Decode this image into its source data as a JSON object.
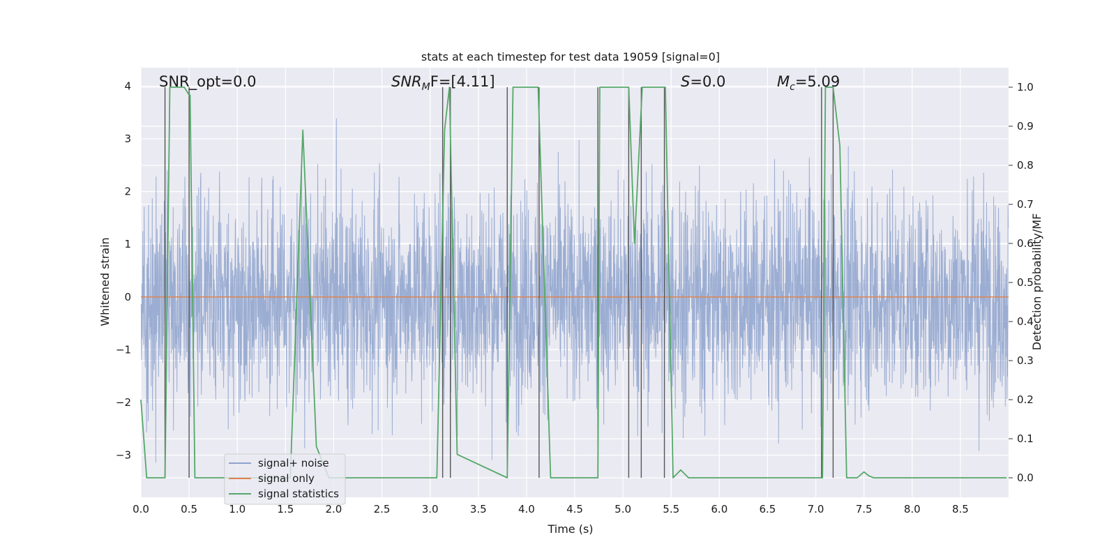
{
  "chart_data": {
    "type": "line",
    "title": "stats at each timestep for test data 19059 [signal=0]",
    "xlabel": "Time (s)",
    "ylabel_left": "Whitened strain",
    "ylabel_right": "Detection probability/MF",
    "xlim": [
      0.0,
      9.0
    ],
    "ylim_left": [
      -3.8,
      4.35
    ],
    "ylim_right": [
      -0.05,
      1.05
    ],
    "x_ticks": [
      0.0,
      0.5,
      1.0,
      1.5,
      2.0,
      2.5,
      3.0,
      3.5,
      4.0,
      4.5,
      5.0,
      5.5,
      6.0,
      6.5,
      7.0,
      7.5,
      8.0,
      8.5
    ],
    "x_tick_labels": [
      "0.0",
      "0.5",
      "1.0",
      "1.5",
      "2.0",
      "2.5",
      "3.0",
      "3.5",
      "4.0",
      "4.5",
      "5.0",
      "5.5",
      "6.0",
      "6.5",
      "7.0",
      "7.5",
      "8.0",
      "8.5"
    ],
    "y_left_ticks": [
      4,
      3,
      2,
      1,
      0,
      -1,
      -2,
      -3
    ],
    "y_left_tick_labels": [
      "4",
      "3",
      "2",
      "1",
      "0",
      "−1",
      "−2",
      "−3"
    ],
    "y_right_ticks": [
      1.0,
      0.9,
      0.8,
      0.7,
      0.6,
      0.5,
      0.4,
      0.3,
      0.2,
      0.1,
      0.0
    ],
    "y_right_tick_labels": [
      "1.0",
      "0.9",
      "0.8",
      "0.7",
      "0.6",
      "0.5",
      "0.4",
      "0.3",
      "0.2",
      "0.1",
      "0.0"
    ],
    "annotations": {
      "snr_opt": "SNR_opt=0.0",
      "snr_mf_main": "SNR",
      "snr_mf_sub": "M",
      "snr_mf_rest": "F=[4.11]",
      "s_main": "S",
      "s_rest": "=0.0",
      "mc_main": "M",
      "mc_sub": "c",
      "mc_rest": "=5.09"
    },
    "legend": [
      "signal+ noise",
      "signal only",
      "signal statistics"
    ],
    "colors": {
      "noise": "#8da2cc",
      "signal_only": "#dd8452",
      "statistics": "#55a868",
      "plot_bg": "#eaeaf2",
      "grid": "#ffffff",
      "vlines": "#555555"
    },
    "noise_series": {
      "name": "signal+ noise",
      "sample_rate_hz": 2048,
      "duration_s": 9.0,
      "min": -3.7,
      "max": 4.1
    },
    "signal_only": {
      "name": "signal only",
      "value": 0.0
    },
    "statistics_series": {
      "name": "signal statistics",
      "x": [
        0.0,
        0.06,
        0.25,
        0.3,
        0.45,
        0.5,
        0.51,
        0.56,
        1.55,
        1.68,
        1.82,
        1.95,
        3.07,
        3.15,
        3.2,
        3.28,
        3.8,
        3.86,
        4.12,
        4.25,
        4.74,
        4.76,
        5.06,
        5.12,
        5.2,
        5.25,
        5.44,
        5.52,
        5.6,
        5.68,
        5.75,
        7.07,
        7.1,
        7.18,
        7.25,
        7.32,
        7.43,
        7.5,
        7.55,
        7.6,
        8.98
      ],
      "y": [
        0.2,
        0.0,
        0.0,
        1.0,
        1.0,
        0.98,
        0.98,
        0.0,
        0.0,
        0.89,
        0.08,
        0.0,
        0.0,
        0.89,
        1.0,
        0.06,
        0.0,
        1.0,
        1.0,
        0.0,
        0.0,
        1.0,
        1.0,
        0.6,
        1.0,
        1.0,
        1.0,
        0.0,
        0.02,
        0.0,
        0.0,
        0.0,
        1.0,
        1.0,
        0.85,
        0.0,
        0.0,
        0.015,
        0.005,
        0.0,
        0.0
      ]
    },
    "vertical_lines_x": [
      0.25,
      0.5,
      3.13,
      3.21,
      3.8,
      4.13,
      4.74,
      5.06,
      5.19,
      5.43,
      7.06,
      7.18
    ]
  }
}
